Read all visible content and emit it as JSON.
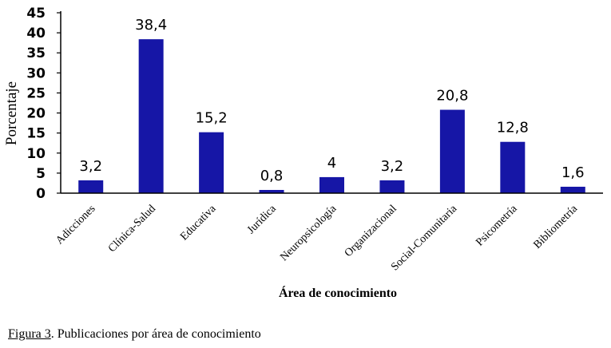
{
  "caption": {
    "figure_label": "Figura 3",
    "text": ". Publicaciones por área de conocimiento"
  },
  "colors": {
    "bar": "#1616a6",
    "axis": "#000000"
  },
  "chart_data": {
    "type": "bar",
    "categories": [
      "Adicciones",
      "Clínica-Salud",
      "Educativa",
      "Jurídica",
      "Neuropsicología",
      "Organizacional",
      "Social-Comunitaria",
      "Psicometría",
      "Bibliometría"
    ],
    "values": [
      3.2,
      38.4,
      15.2,
      0.8,
      4,
      3.2,
      20.8,
      12.8,
      1.6
    ],
    "data_labels": [
      "3,2",
      "38,4",
      "15,2",
      "0,8",
      "4",
      "3,2",
      "20,8",
      "12,8",
      "1,6"
    ],
    "title": "",
    "xlabel": "Área de conocimiento",
    "ylabel": "Porcentaje",
    "ylim": [
      0,
      45
    ],
    "yticks": [
      0,
      5,
      10,
      15,
      20,
      25,
      30,
      35,
      40,
      45
    ],
    "grid": false,
    "legend": "none"
  }
}
